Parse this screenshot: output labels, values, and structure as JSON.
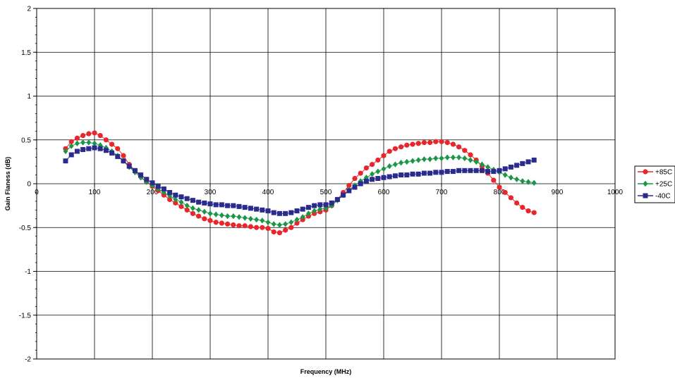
{
  "chart_data": {
    "type": "scatter",
    "xlabel": "Frequency (MHz)",
    "ylabel": "Gain Flaness (dB)",
    "xlim": [
      0,
      1000
    ],
    "ylim": [
      -2,
      2
    ],
    "x_ticks": [
      "0",
      "100",
      "200",
      "300",
      "400",
      "500",
      "600",
      "700",
      "800",
      "900",
      "1000"
    ],
    "y_ticks": [
      "-2",
      "-1.5",
      "-1",
      "-0.5",
      "0",
      "0.5",
      "1",
      "1.5",
      "2"
    ],
    "x_tick_values": [
      0,
      100,
      200,
      300,
      400,
      500,
      600,
      700,
      800,
      900,
      1000
    ],
    "y_tick_values": [
      -2,
      -1.5,
      -1,
      -0.5,
      0,
      0.5,
      1,
      1.5,
      2
    ],
    "grid": true,
    "legend_position": "right",
    "series": [
      {
        "name": "+85C",
        "color": "#e8262b",
        "marker": "circle",
        "x": [
          50,
          60,
          70,
          80,
          90,
          100,
          110,
          120,
          130,
          140,
          150,
          160,
          170,
          180,
          190,
          200,
          210,
          220,
          230,
          240,
          250,
          260,
          270,
          280,
          290,
          300,
          310,
          320,
          330,
          340,
          350,
          360,
          370,
          380,
          390,
          400,
          410,
          420,
          430,
          440,
          450,
          460,
          470,
          480,
          490,
          500,
          510,
          520,
          530,
          540,
          550,
          560,
          570,
          580,
          590,
          600,
          610,
          620,
          630,
          640,
          650,
          660,
          670,
          680,
          690,
          700,
          710,
          720,
          730,
          740,
          750,
          760,
          770,
          780,
          790,
          800,
          810,
          820,
          830,
          840,
          850,
          860
        ],
        "y": [
          0.4,
          0.48,
          0.52,
          0.55,
          0.57,
          0.58,
          0.55,
          0.5,
          0.45,
          0.4,
          0.32,
          0.22,
          0.15,
          0.08,
          0.02,
          -0.03,
          -0.08,
          -0.13,
          -0.18,
          -0.22,
          -0.26,
          -0.3,
          -0.34,
          -0.37,
          -0.4,
          -0.42,
          -0.44,
          -0.45,
          -0.46,
          -0.47,
          -0.48,
          -0.48,
          -0.49,
          -0.5,
          -0.5,
          -0.51,
          -0.55,
          -0.56,
          -0.53,
          -0.5,
          -0.45,
          -0.41,
          -0.37,
          -0.34,
          -0.32,
          -0.3,
          -0.25,
          -0.18,
          -0.1,
          -0.02,
          0.06,
          0.12,
          0.18,
          0.22,
          0.27,
          0.32,
          0.37,
          0.4,
          0.42,
          0.44,
          0.45,
          0.46,
          0.47,
          0.47,
          0.48,
          0.48,
          0.47,
          0.45,
          0.42,
          0.38,
          0.33,
          0.27,
          0.2,
          0.12,
          0.04,
          -0.04,
          -0.1,
          -0.16,
          -0.22,
          -0.27,
          -0.31,
          -0.33
        ]
      },
      {
        "name": "+25C",
        "color": "#1a9646",
        "marker": "diamond",
        "x": [
          50,
          60,
          70,
          80,
          90,
          100,
          110,
          120,
          130,
          140,
          150,
          160,
          170,
          180,
          190,
          200,
          210,
          220,
          230,
          240,
          250,
          260,
          270,
          280,
          290,
          300,
          310,
          320,
          330,
          340,
          350,
          360,
          370,
          380,
          390,
          400,
          410,
          420,
          430,
          440,
          450,
          460,
          470,
          480,
          490,
          500,
          510,
          520,
          530,
          540,
          550,
          560,
          570,
          580,
          590,
          600,
          610,
          620,
          630,
          640,
          650,
          660,
          670,
          680,
          690,
          700,
          710,
          720,
          730,
          740,
          750,
          760,
          770,
          780,
          790,
          800,
          810,
          820,
          830,
          840,
          850,
          860
        ],
        "y": [
          0.37,
          0.43,
          0.46,
          0.47,
          0.47,
          0.46,
          0.44,
          0.41,
          0.37,
          0.32,
          0.26,
          0.19,
          0.13,
          0.07,
          0.02,
          -0.02,
          -0.06,
          -0.1,
          -0.14,
          -0.18,
          -0.21,
          -0.25,
          -0.28,
          -0.3,
          -0.32,
          -0.34,
          -0.35,
          -0.36,
          -0.37,
          -0.37,
          -0.38,
          -0.39,
          -0.4,
          -0.41,
          -0.42,
          -0.44,
          -0.46,
          -0.47,
          -0.46,
          -0.44,
          -0.41,
          -0.38,
          -0.34,
          -0.31,
          -0.29,
          -0.28,
          -0.25,
          -0.19,
          -0.13,
          -0.07,
          -0.02,
          0.03,
          0.07,
          0.11,
          0.14,
          0.17,
          0.2,
          0.22,
          0.24,
          0.25,
          0.26,
          0.27,
          0.28,
          0.28,
          0.29,
          0.29,
          0.3,
          0.3,
          0.3,
          0.29,
          0.27,
          0.25,
          0.22,
          0.19,
          0.16,
          0.13,
          0.1,
          0.07,
          0.05,
          0.03,
          0.02,
          0.01
        ]
      },
      {
        "name": "-40C",
        "color": "#2a2b8c",
        "marker": "square",
        "x": [
          50,
          60,
          70,
          80,
          90,
          100,
          110,
          120,
          130,
          140,
          150,
          160,
          170,
          180,
          190,
          200,
          210,
          220,
          230,
          240,
          250,
          260,
          270,
          280,
          290,
          300,
          310,
          320,
          330,
          340,
          350,
          360,
          370,
          380,
          390,
          400,
          410,
          420,
          430,
          440,
          450,
          460,
          470,
          480,
          490,
          500,
          510,
          520,
          530,
          540,
          550,
          560,
          570,
          580,
          590,
          600,
          610,
          620,
          630,
          640,
          650,
          660,
          670,
          680,
          690,
          700,
          710,
          720,
          730,
          740,
          750,
          760,
          770,
          780,
          790,
          800,
          810,
          820,
          830,
          840,
          850,
          860
        ],
        "y": [
          0.26,
          0.33,
          0.37,
          0.39,
          0.4,
          0.41,
          0.4,
          0.38,
          0.35,
          0.31,
          0.26,
          0.2,
          0.15,
          0.1,
          0.05,
          0.01,
          -0.03,
          -0.06,
          -0.1,
          -0.13,
          -0.15,
          -0.17,
          -0.19,
          -0.21,
          -0.22,
          -0.23,
          -0.24,
          -0.24,
          -0.25,
          -0.25,
          -0.26,
          -0.27,
          -0.28,
          -0.29,
          -0.3,
          -0.31,
          -0.33,
          -0.34,
          -0.34,
          -0.33,
          -0.31,
          -0.29,
          -0.27,
          -0.25,
          -0.24,
          -0.24,
          -0.22,
          -0.18,
          -0.13,
          -0.08,
          -0.04,
          0.0,
          0.03,
          0.05,
          0.06,
          0.07,
          0.08,
          0.09,
          0.1,
          0.1,
          0.11,
          0.11,
          0.12,
          0.12,
          0.13,
          0.13,
          0.14,
          0.14,
          0.15,
          0.15,
          0.15,
          0.15,
          0.15,
          0.14,
          0.14,
          0.15,
          0.17,
          0.19,
          0.21,
          0.23,
          0.25,
          0.27
        ]
      }
    ]
  }
}
